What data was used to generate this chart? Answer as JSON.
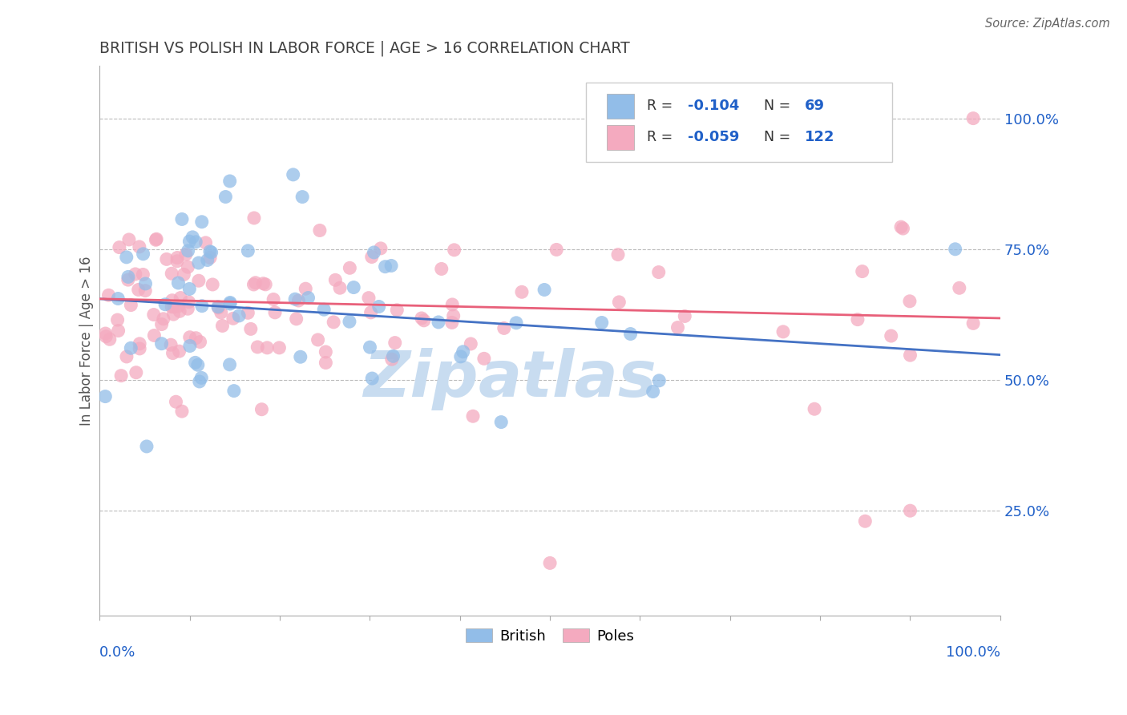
{
  "title": "BRITISH VS POLISH IN LABOR FORCE | AGE > 16 CORRELATION CHART",
  "source": "Source: ZipAtlas.com",
  "ylabel": "In Labor Force | Age > 16",
  "british_R": -0.104,
  "british_N": 69,
  "poles_R": -0.059,
  "poles_N": 122,
  "british_color": "#92BDE8",
  "poles_color": "#F4AABF",
  "british_line_color": "#4472C4",
  "poles_line_color": "#E8607A",
  "legend_text_color": "#2060C8",
  "title_color": "#404040",
  "background_color": "#FFFFFF",
  "grid_color": "#BBBBBB",
  "watermark_color": "#C8DCF0",
  "brit_trend_start_y": 0.655,
  "brit_trend_end_y": 0.548,
  "poles_trend_start_y": 0.655,
  "poles_trend_end_y": 0.618,
  "xlim": [
    0.0,
    1.0
  ],
  "ylim": [
    0.05,
    1.1
  ],
  "yticks": [
    0.25,
    0.5,
    0.75,
    1.0
  ],
  "ytick_labels": [
    "25.0%",
    "50.0%",
    "75.0%",
    "100.0%"
  ],
  "seed": 12345
}
